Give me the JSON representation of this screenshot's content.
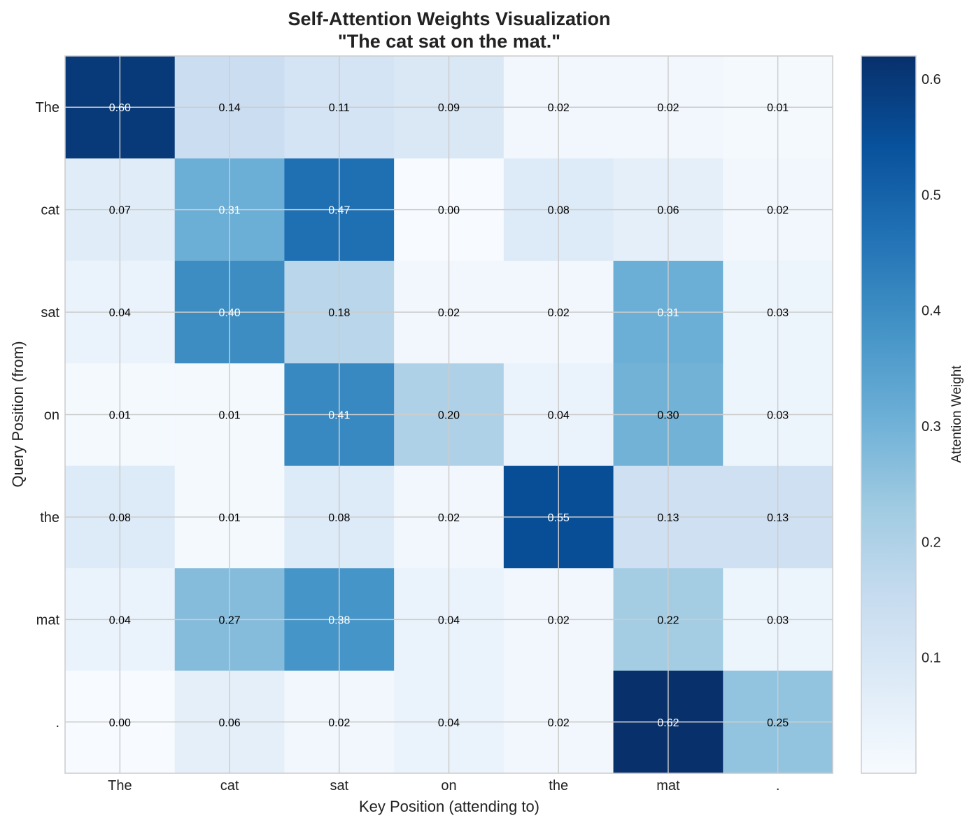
{
  "chart_data": {
    "type": "heatmap",
    "title": "Self-Attention Weights Visualization",
    "subtitle": "\"The cat sat on the mat.\"",
    "xlabel": "Key Position (attending to)",
    "ylabel": "Query Position (from)",
    "x_tokens": [
      "The",
      "cat",
      "sat",
      "on",
      "the",
      "mat",
      "."
    ],
    "y_tokens": [
      "The",
      "cat",
      "sat",
      "on",
      "the",
      "mat",
      "."
    ],
    "values": [
      [
        0.6,
        0.14,
        0.11,
        0.09,
        0.02,
        0.02,
        0.01
      ],
      [
        0.07,
        0.31,
        0.47,
        0.0,
        0.08,
        0.06,
        0.02
      ],
      [
        0.04,
        0.4,
        0.18,
        0.02,
        0.02,
        0.31,
        0.03
      ],
      [
        0.01,
        0.01,
        0.41,
        0.2,
        0.04,
        0.3,
        0.03
      ],
      [
        0.08,
        0.01,
        0.08,
        0.02,
        0.55,
        0.13,
        0.13
      ],
      [
        0.04,
        0.27,
        0.38,
        0.04,
        0.02,
        0.22,
        0.03
      ],
      [
        0.0,
        0.06,
        0.02,
        0.04,
        0.02,
        0.62,
        0.25
      ]
    ],
    "colormap": "Blues",
    "vmin": 0.0,
    "vmax": 0.62,
    "grid": true,
    "colorbar": {
      "label": "Attention Weight",
      "ticks": [
        "0.1",
        "0.2",
        "0.3",
        "0.4",
        "0.5",
        "0.6"
      ]
    },
    "colors": {
      "text_dark": "#000000",
      "text_light": "#ffffff",
      "grid": "#cccccc",
      "frame": "#cccccc"
    }
  }
}
